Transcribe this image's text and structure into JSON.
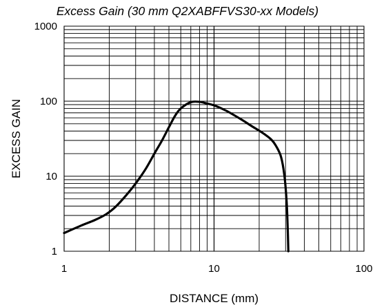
{
  "chart_data": {
    "type": "line",
    "title": "Excess Gain (30 mm Q2XABFFVS30-xx Models)",
    "xlabel": "DISTANCE (mm)",
    "ylabel": "EXCESS GAIN",
    "x_scale": "log",
    "y_scale": "log",
    "xlim": [
      1,
      100
    ],
    "ylim": [
      1,
      1000
    ],
    "x_ticks": [
      "1",
      "10",
      "100"
    ],
    "y_ticks": [
      "1",
      "10",
      "100",
      "1000"
    ],
    "grid": true,
    "legend": "none",
    "series": [
      {
        "color": "#000000",
        "x": [
          1.0,
          1.3,
          1.6,
          1.9,
          2.2,
          2.6,
          3.0,
          3.5,
          4.0,
          4.5,
          5.0,
          5.5,
          6.0,
          7.0,
          8.0,
          9.0,
          10.0,
          12.0,
          15.0,
          18.0,
          21.0,
          24.0,
          26.0,
          28.0,
          29.5,
          30.5,
          31.0,
          31.3
        ],
        "y": [
          1.75,
          2.2,
          2.6,
          3.1,
          3.9,
          5.6,
          8.0,
          12.5,
          20.0,
          30.0,
          45.0,
          64.0,
          80.0,
          97.0,
          98.0,
          93.0,
          88.0,
          75.0,
          58.0,
          46.0,
          38.0,
          31.0,
          25.0,
          18.0,
          10.0,
          4.5,
          2.0,
          1.0
        ]
      }
    ]
  }
}
